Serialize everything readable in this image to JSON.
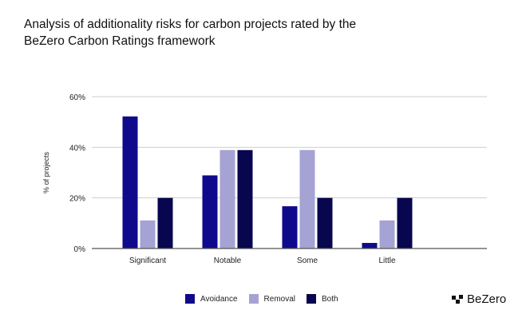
{
  "title": "Analysis of additionality risks for carbon projects rated by the BeZero Carbon Ratings framework",
  "logo_text": "BeZero",
  "chart_data": {
    "type": "bar",
    "title": "Analysis of additionality risks for carbon projects rated by the BeZero Carbon Ratings framework",
    "xlabel": "",
    "ylabel": "% of projects",
    "ylim": [
      0,
      60
    ],
    "yticks": [
      "0%",
      "20%",
      "40%",
      "60%"
    ],
    "ytick_values": [
      0,
      20,
      40,
      60
    ],
    "grid": true,
    "legend_position": "bottom",
    "categories": [
      "Significant",
      "Notable",
      "Some",
      "Little",
      ""
    ],
    "series": [
      {
        "name": "Avoidance",
        "color": "#0f0a8c",
        "values": [
          52.2,
          28.9,
          16.7,
          2.2,
          0
        ]
      },
      {
        "name": "Removal",
        "color": "#a5a3d3",
        "values": [
          11.1,
          38.9,
          38.9,
          11.1,
          0
        ]
      },
      {
        "name": "Both",
        "color": "#07064f",
        "values": [
          20,
          38.9,
          20,
          20,
          0
        ]
      }
    ]
  }
}
